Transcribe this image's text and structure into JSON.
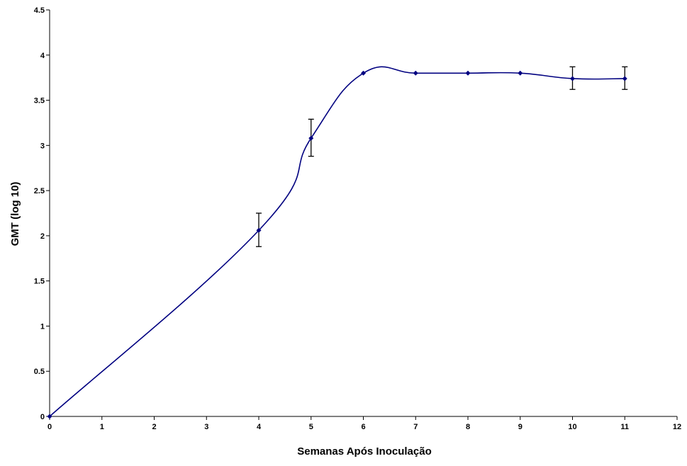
{
  "chart_data": {
    "type": "line",
    "title": "",
    "xlabel": "Semanas Após Inoculação",
    "ylabel": "GMT (log 10)",
    "xlim": [
      0,
      12
    ],
    "ylim": [
      0,
      4.5
    ],
    "x_ticks": [
      0,
      1,
      2,
      3,
      4,
      5,
      6,
      7,
      8,
      9,
      10,
      11,
      12
    ],
    "y_ticks": [
      0,
      0.5,
      1,
      1.5,
      2,
      2.5,
      3,
      3.5,
      4,
      4.5
    ],
    "grid": false,
    "legend": "none",
    "series": [
      {
        "color": "#000080",
        "x": [
          0,
          4,
          5,
          6,
          7,
          8,
          9,
          10,
          11
        ],
        "y": [
          0,
          2.06,
          3.08,
          3.8,
          3.8,
          3.8,
          3.8,
          3.74,
          3.74
        ],
        "error_bars": [
          {
            "x": 4,
            "low": 1.88,
            "high": 2.25
          },
          {
            "x": 5,
            "low": 2.88,
            "high": 3.29
          },
          {
            "x": 10,
            "low": 3.62,
            "high": 3.87
          },
          {
            "x": 11,
            "low": 3.62,
            "high": 3.87
          }
        ]
      }
    ]
  }
}
